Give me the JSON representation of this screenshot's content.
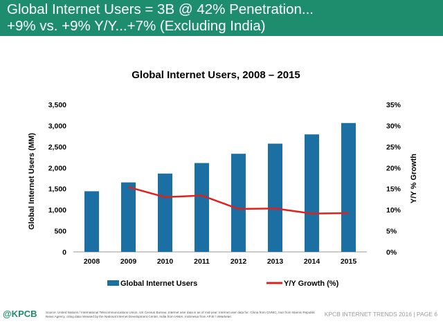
{
  "header": {
    "line1": "Global Internet Users = 3B @ 42% Penetration...",
    "line2": "+9% vs. +9% Y/Y...+7% (Excluding India)"
  },
  "chart_data": {
    "type": "bar",
    "title": "Global Internet Users, 2008 – 2015",
    "categories": [
      "2008",
      "2009",
      "2010",
      "2011",
      "2012",
      "2013",
      "2014",
      "2015"
    ],
    "series": [
      {
        "name": "Global Internet Users",
        "type": "bar",
        "axis": "left",
        "color": "#1b6fa2",
        "values": [
          1440,
          1650,
          1860,
          2110,
          2330,
          2570,
          2790,
          3060
        ]
      },
      {
        "name": "Y/Y Growth (%)",
        "type": "line",
        "axis": "right",
        "color": "#e0201b",
        "values": [
          null,
          15.4,
          13.0,
          13.4,
          10.2,
          10.3,
          9.1,
          9.2
        ]
      }
    ],
    "ylabel": "Global Internet Users (MM)",
    "y2label": "Y/Y % Growth",
    "ylim": [
      0,
      3500
    ],
    "y2lim": [
      0,
      35
    ],
    "yticks": [
      "0",
      "500",
      "1,000",
      "1,500",
      "2,000",
      "2,500",
      "3,000",
      "3,500"
    ],
    "y2ticks": [
      "0%",
      "5%",
      "10%",
      "15%",
      "20%",
      "25%",
      "30%",
      "35%"
    ],
    "grid": false,
    "legend_position": "bottom"
  },
  "footer": {
    "logo": "@KPCB",
    "source": "Source: United Nations / International Telecommunications Union, US Census Bureau. Internet user data is as of mid-year. Internet user data for: China from CNNIC, Iran from Islamic Republic News Agency, citing data released by the National Internet Development Center, India from IAMAI, Indonesia from APJII / eMarketer.",
    "right": "KPCB INTERNET TRENDS 2016  |  PAGE 6"
  }
}
